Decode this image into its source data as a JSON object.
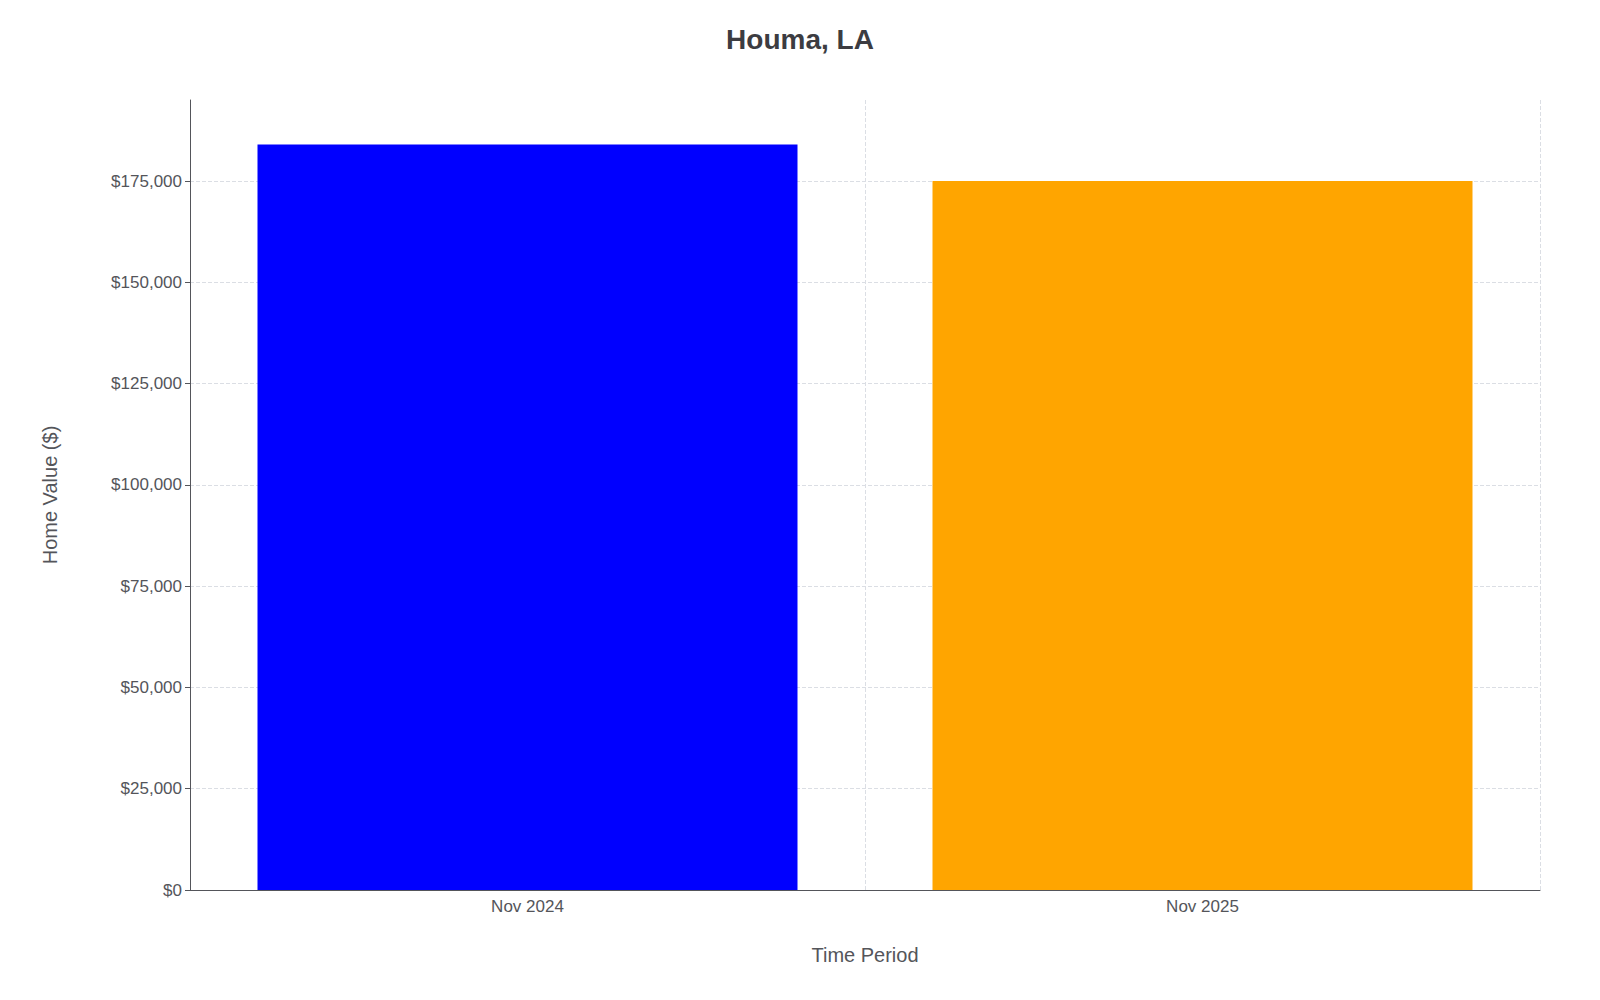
{
  "chart_data": {
    "type": "bar",
    "title": "Houma, LA",
    "xlabel": "Time Period",
    "ylabel": "Home Value ($)",
    "categories": [
      "Nov 2024",
      "Nov 2025"
    ],
    "values": [
      184000,
      175000
    ],
    "colors": [
      "#0000FF",
      "#FFA500"
    ],
    "ylim": [
      0,
      195000
    ],
    "yticks": [
      {
        "value": 0,
        "label": "$0"
      },
      {
        "value": 25000,
        "label": "$25,000"
      },
      {
        "value": 50000,
        "label": "$50,000"
      },
      {
        "value": 75000,
        "label": "$75,000"
      },
      {
        "value": 100000,
        "label": "$100,000"
      },
      {
        "value": 125000,
        "label": "$125,000"
      },
      {
        "value": 150000,
        "label": "$150,000"
      },
      {
        "value": 175000,
        "label": "$175,000"
      }
    ],
    "grid": true
  }
}
